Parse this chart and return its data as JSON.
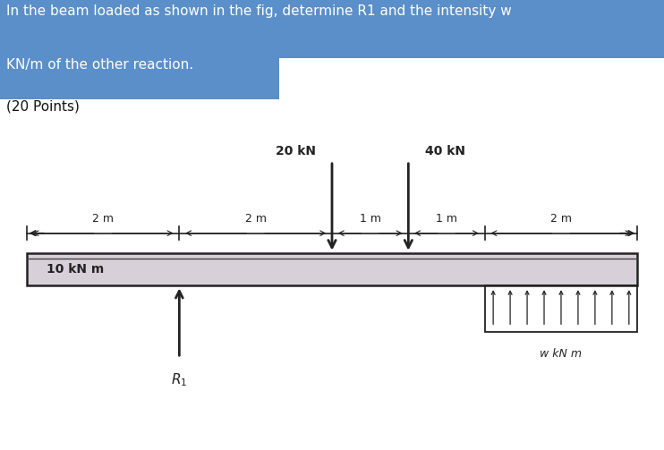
{
  "title_line1": "In the beam loaded as shown in the fig, determine R1 and the intensity w",
  "title_line2": "KN/m of the other reaction.",
  "title_line3": "(20 Points)",
  "bg_color_top": "#ffffff",
  "bg_highlight": "#5b8fc9",
  "bg_color_diagram": "#b3a8bc",
  "beam_facecolor": "#d8d0d8",
  "beam_linecolor": "#222222",
  "label_20kN": "20 kN",
  "label_40kN": "40 kN",
  "label_moment": "10 kN m",
  "label_R1": "$R_1$",
  "label_w": "w kN m",
  "label_1m_a": "1 m",
  "label_1m_b": "1 m",
  "label_2m_a": "2 m",
  "label_2m_b": "2 m",
  "label_2m_c": "2 m",
  "font_color": "#1a1a2e",
  "n_dist_arrows": 9
}
